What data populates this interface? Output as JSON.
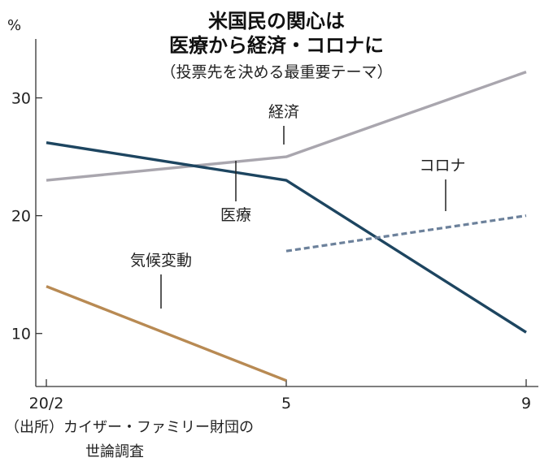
{
  "title": {
    "line1": "米国民の関心は",
    "line2": "医療から経済・コロナに"
  },
  "subtitle": "（投票先を決める最重要テーマ）",
  "source": {
    "line1": "（出所）カイザー・ファミリー財団の",
    "line2": "世論調査"
  },
  "chart_data": {
    "type": "line",
    "y_unit": "%",
    "ylim": [
      5.5,
      35
    ],
    "yticks": [
      10,
      20,
      30
    ],
    "x_ticks": [
      "20/2",
      "5",
      "9"
    ],
    "x_positions": [
      0,
      3,
      6
    ],
    "xlim": [
      0,
      6
    ],
    "grid": false,
    "legend": "labels placed next to each line",
    "series": [
      {
        "name": "経済",
        "color": "#a9a6ae",
        "dashed": false,
        "x": [
          0,
          3,
          6
        ],
        "values": [
          23.0,
          25.0,
          32.2
        ]
      },
      {
        "name": "医療",
        "color": "#1d4560",
        "dashed": false,
        "x": [
          0,
          3,
          6
        ],
        "values": [
          26.2,
          23.0,
          10.1
        ]
      },
      {
        "name": "コロナ",
        "color": "#6c819b",
        "dashed": true,
        "x": [
          3,
          6
        ],
        "values": [
          17.0,
          20.0
        ]
      },
      {
        "name": "気候変動",
        "color": "#b88a53",
        "dashed": false,
        "x": [
          0,
          3
        ],
        "values": [
          14.0,
          6.0
        ]
      }
    ]
  }
}
